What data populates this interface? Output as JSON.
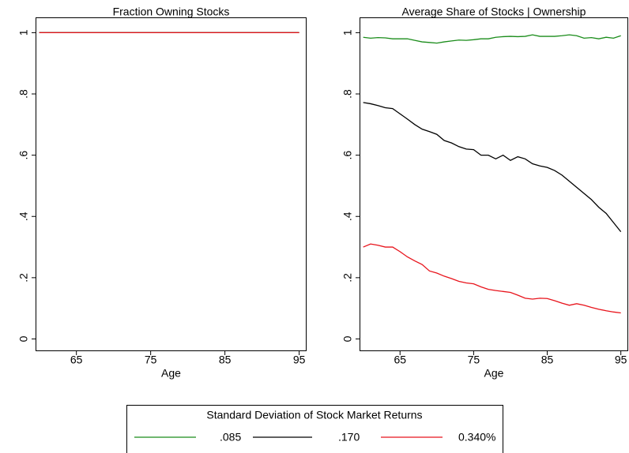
{
  "chart_data": [
    {
      "type": "line",
      "title": "Fraction Owning Stocks",
      "xlabel": "Age",
      "x": [
        60,
        61,
        62,
        63,
        64,
        65,
        66,
        67,
        68,
        69,
        70,
        71,
        72,
        73,
        74,
        75,
        76,
        77,
        78,
        79,
        80,
        81,
        82,
        83,
        84,
        85,
        86,
        87,
        88,
        89,
        90,
        91,
        92,
        93,
        94,
        95
      ],
      "xlim": [
        59.5,
        96
      ],
      "xticks": [
        65,
        75,
        85,
        95
      ],
      "ylim": [
        -0.04,
        1.05
      ],
      "yticks": [
        0,
        {
          "value": 0.2,
          "label": ".2"
        },
        {
          "value": 0.4,
          "label": ".4"
        },
        {
          "value": 0.6,
          "label": ".6"
        },
        {
          "value": 0.8,
          "label": ".8"
        },
        1
      ],
      "series": [
        {
          "name": ".085",
          "color": "#1a8c1a",
          "values": [
            1,
            1,
            1,
            1,
            1,
            1,
            1,
            1,
            1,
            1,
            1,
            1,
            1,
            1,
            1,
            1,
            1,
            1,
            1,
            1,
            1,
            1,
            1,
            1,
            1,
            1,
            1,
            1,
            1,
            1,
            1,
            1,
            1,
            1,
            1,
            1
          ]
        },
        {
          "name": ".170",
          "color": "#000000",
          "values": [
            1,
            1,
            1,
            1,
            1,
            1,
            1,
            1,
            1,
            1,
            1,
            1,
            1,
            1,
            1,
            1,
            1,
            1,
            1,
            1,
            1,
            1,
            1,
            1,
            1,
            1,
            1,
            1,
            1,
            1,
            1,
            1,
            1,
            1,
            1,
            1
          ]
        },
        {
          "name": "0.340%",
          "color": "#e8141c",
          "values": [
            1,
            1,
            1,
            1,
            1,
            1,
            1,
            1,
            1,
            1,
            1,
            1,
            1,
            1,
            1,
            1,
            1,
            1,
            1,
            1,
            1,
            1,
            1,
            1,
            1,
            1,
            1,
            1,
            1,
            1,
            1,
            1,
            1,
            1,
            1,
            1
          ]
        }
      ]
    },
    {
      "type": "line",
      "title": "Average Share of Stocks | Ownership",
      "xlabel": "Age",
      "x": [
        60,
        61,
        62,
        63,
        64,
        65,
        66,
        67,
        68,
        69,
        70,
        71,
        72,
        73,
        74,
        75,
        76,
        77,
        78,
        79,
        80,
        81,
        82,
        83,
        84,
        85,
        86,
        87,
        88,
        89,
        90,
        91,
        92,
        93,
        94,
        95
      ],
      "xlim": [
        59.5,
        96
      ],
      "xticks": [
        65,
        75,
        85,
        95
      ],
      "ylim": [
        -0.04,
        1.05
      ],
      "yticks": [
        0,
        {
          "value": 0.2,
          "label": ".2"
        },
        {
          "value": 0.4,
          "label": ".4"
        },
        {
          "value": 0.6,
          "label": ".6"
        },
        {
          "value": 0.8,
          "label": ".8"
        },
        1
      ],
      "series": [
        {
          "name": ".085",
          "color": "#1a8c1a",
          "values": [
            0.985,
            0.982,
            0.984,
            0.983,
            0.98,
            0.98,
            0.98,
            0.975,
            0.97,
            0.968,
            0.966,
            0.97,
            0.973,
            0.976,
            0.975,
            0.977,
            0.98,
            0.98,
            0.985,
            0.987,
            0.988,
            0.987,
            0.988,
            0.993,
            0.988,
            0.988,
            0.988,
            0.99,
            0.993,
            0.99,
            0.982,
            0.984,
            0.98,
            0.985,
            0.982,
            0.99
          ]
        },
        {
          "name": ".170",
          "color": "#000000",
          "values": [
            0.772,
            0.768,
            0.762,
            0.755,
            0.752,
            0.735,
            0.718,
            0.7,
            0.685,
            0.677,
            0.668,
            0.648,
            0.64,
            0.628,
            0.62,
            0.618,
            0.6,
            0.6,
            0.588,
            0.6,
            0.583,
            0.595,
            0.588,
            0.572,
            0.565,
            0.56,
            0.55,
            0.535,
            0.515,
            0.495,
            0.475,
            0.455,
            0.43,
            0.41,
            0.38,
            0.35
          ]
        },
        {
          "name": "0.340%",
          "color": "#e8141c",
          "values": [
            0.3,
            0.31,
            0.306,
            0.3,
            0.3,
            0.285,
            0.268,
            0.255,
            0.243,
            0.222,
            0.215,
            0.205,
            0.197,
            0.188,
            0.183,
            0.18,
            0.17,
            0.162,
            0.158,
            0.155,
            0.152,
            0.143,
            0.133,
            0.13,
            0.133,
            0.132,
            0.125,
            0.117,
            0.11,
            0.115,
            0.11,
            0.103,
            0.097,
            0.092,
            0.088,
            0.085
          ]
        }
      ]
    }
  ],
  "legend_title": "Standard Deviation of Stock Market Returns"
}
